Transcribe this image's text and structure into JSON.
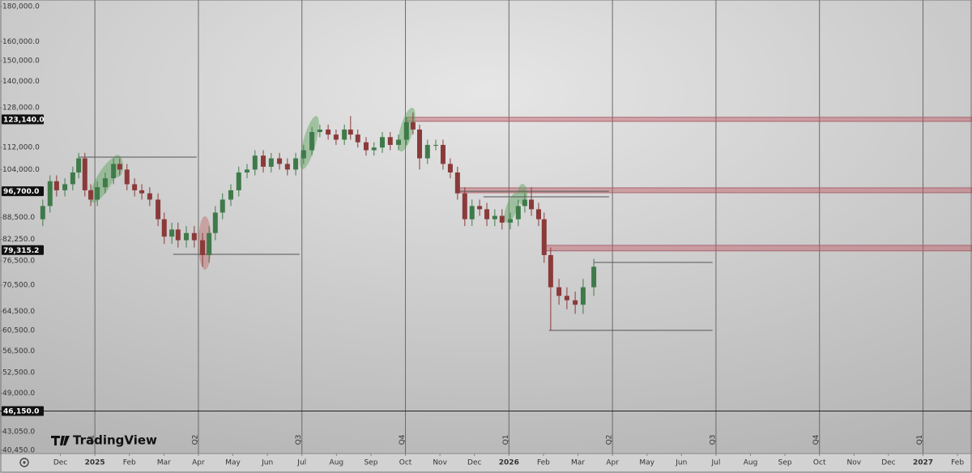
{
  "chart_data": {
    "type": "candlestick",
    "watermark": "TradingView",
    "log_scale": true,
    "up_color": "#3f7a4a",
    "down_color": "#8b3a3a",
    "ylim": [
      40000,
      184000
    ],
    "yticks": [
      {
        "value": 180000,
        "label": "180,000.0"
      },
      {
        "value": 160000,
        "label": "160,000.0"
      },
      {
        "value": 150000,
        "label": "150,000.0"
      },
      {
        "value": 140000,
        "label": "140,000.0"
      },
      {
        "value": 128000,
        "label": "128,000.0"
      },
      {
        "value": 112000,
        "label": "112,000.0"
      },
      {
        "value": 104000,
        "label": "104,000.0"
      },
      {
        "value": 88500,
        "label": "88,500.0"
      },
      {
        "value": 82250,
        "label": "82,250.0"
      },
      {
        "value": 76500,
        "label": "76,500.0"
      },
      {
        "value": 70500,
        "label": "70,500.0"
      },
      {
        "value": 64500,
        "label": "64,500.0"
      },
      {
        "value": 60500,
        "label": "60,500.0"
      },
      {
        "value": 56500,
        "label": "56,500.0"
      },
      {
        "value": 52500,
        "label": "52,500.0"
      },
      {
        "value": 49000,
        "label": "49,000.0"
      },
      {
        "value": 43050,
        "label": "43,050.0"
      },
      {
        "value": 40450,
        "label": "40,450.0"
      }
    ],
    "price_labels": [
      {
        "value": 123140,
        "label": "123,140.0"
      },
      {
        "value": 96700,
        "label": "96,700.0"
      },
      {
        "value": 79315.2,
        "label": "79,315.2"
      },
      {
        "value": 46150,
        "label": "46,150.0"
      }
    ],
    "xlim": [
      -0.75,
      27.42
    ],
    "xticks": [
      {
        "value": 1,
        "label": "Dec"
      },
      {
        "value": 2,
        "label": "2025"
      },
      {
        "value": 3,
        "label": "Feb"
      },
      {
        "value": 4,
        "label": "Mar"
      },
      {
        "value": 5,
        "label": "Apr"
      },
      {
        "value": 6,
        "label": "May"
      },
      {
        "value": 7,
        "label": "Jun"
      },
      {
        "value": 8,
        "label": "Jul"
      },
      {
        "value": 9,
        "label": "Aug"
      },
      {
        "value": 10,
        "label": "Sep"
      },
      {
        "value": 11,
        "label": "Oct"
      },
      {
        "value": 12,
        "label": "Nov"
      },
      {
        "value": 13,
        "label": "Dec"
      },
      {
        "value": 14,
        "label": "2026"
      },
      {
        "value": 15,
        "label": "Feb"
      },
      {
        "value": 16,
        "label": "Mar"
      },
      {
        "value": 17,
        "label": "Apr"
      },
      {
        "value": 18,
        "label": "May"
      },
      {
        "value": 19,
        "label": "Jun"
      },
      {
        "value": 20,
        "label": "Jul"
      },
      {
        "value": 21,
        "label": "Aug"
      },
      {
        "value": 22,
        "label": "Sep"
      },
      {
        "value": 23,
        "label": "Oct"
      },
      {
        "value": 24,
        "label": "Nov"
      },
      {
        "value": 25,
        "label": "Dec"
      },
      {
        "value": 26,
        "label": "2027"
      },
      {
        "value": 27,
        "label": "Feb"
      }
    ],
    "quarter_ticks": [
      {
        "value": 2,
        "label": "Q1"
      },
      {
        "value": 5,
        "label": "Q2"
      },
      {
        "value": 8,
        "label": "Q3"
      },
      {
        "value": 11,
        "label": "Q4"
      },
      {
        "value": 14,
        "label": "Q1"
      },
      {
        "value": 17,
        "label": "Q2"
      },
      {
        "value": 20,
        "label": "Q3"
      },
      {
        "value": 23,
        "label": "Q4"
      },
      {
        "value": 26,
        "label": "Q1"
      }
    ],
    "zones": [
      {
        "low": 122300,
        "high": 124000,
        "x0": 11.03
      },
      {
        "low": 96200,
        "high": 97800,
        "x0": 12.46
      },
      {
        "low": 79100,
        "high": 80600,
        "x0": 15.02
      }
    ],
    "levels": [
      {
        "value": 108450,
        "x0": 1.53,
        "x1": 4.95
      },
      {
        "value": 78200,
        "x0": 4.27,
        "x1": 7.93
      },
      {
        "value": 94900,
        "x0": 13.26,
        "x1": 16.9
      },
      {
        "value": 96700,
        "x0": 12.46,
        "x1": 16.9
      },
      {
        "value": 76100,
        "x0": 16.46,
        "x1": 19.9
      },
      {
        "value": 60550,
        "x0": 15.16,
        "x1": 19.9
      },
      {
        "value": 46150
      }
    ],
    "candles": {
      "x": [
        0.49,
        0.7,
        0.89,
        1.13,
        1.36,
        1.53,
        1.71,
        1.88,
        2.07,
        2.3,
        2.54,
        2.72,
        2.93,
        3.15,
        3.36,
        3.59,
        3.83,
        4.01,
        4.23,
        4.41,
        4.65,
        4.88,
        5.12,
        5.31,
        5.49,
        5.7,
        5.94,
        6.17,
        6.41,
        6.64,
        6.88,
        7.11,
        7.35,
        7.58,
        7.82,
        8.05,
        8.29,
        8.52,
        8.76,
        8.99,
        9.23,
        9.41,
        9.62,
        9.86,
        10.09,
        10.33,
        10.56,
        10.8,
        11.03,
        11.22,
        11.41,
        11.64,
        11.88,
        12.09,
        12.3,
        12.51,
        12.72,
        12.93,
        13.15,
        13.36,
        13.59,
        13.8,
        14.04,
        14.27,
        14.46,
        14.65,
        14.86,
        15.02,
        15.21,
        15.45,
        15.68,
        15.92,
        16.15,
        16.46
      ],
      "open": [
        88000,
        92000,
        100000,
        97000,
        99000,
        103000,
        108000,
        97000,
        94000,
        98000,
        101000,
        106000,
        104000,
        99000,
        97000,
        96000,
        94000,
        88000,
        83000,
        85000,
        82000,
        84000,
        82000,
        78000,
        84000,
        90000,
        94000,
        97000,
        103000,
        104000,
        109000,
        105000,
        108000,
        106000,
        104000,
        108000,
        111000,
        118000,
        119000,
        117000,
        115000,
        119000,
        117000,
        114000,
        111000,
        112000,
        116000,
        113000,
        115000,
        122000,
        119000,
        108000,
        113000,
        113000,
        106000,
        103000,
        96000,
        88000,
        92000,
        91000,
        88000,
        89000,
        87000,
        88000,
        92000,
        94000,
        91000,
        88000,
        78000,
        70000,
        68000,
        67000,
        66000,
        70000
      ],
      "high": [
        94000,
        102000,
        102000,
        101000,
        105000,
        110000,
        110000,
        99000,
        100000,
        103000,
        108000,
        108000,
        106000,
        101000,
        99000,
        98000,
        96000,
        90000,
        87000,
        87000,
        86000,
        86000,
        84000,
        86000,
        92000,
        96000,
        99000,
        105000,
        106000,
        111000,
        111000,
        110000,
        110000,
        108000,
        110000,
        113000,
        120000,
        121000,
        121000,
        119000,
        121000,
        124500,
        119000,
        116000,
        114000,
        118000,
        118000,
        117000,
        124000,
        126000,
        121000,
        115000,
        115000,
        115000,
        108000,
        105000,
        98000,
        94000,
        94000,
        93000,
        91000,
        91000,
        90000,
        94000,
        96000,
        98000,
        93000,
        90000,
        80000,
        72000,
        70000,
        69000,
        72000,
        77000
      ],
      "low": [
        86000,
        90000,
        95000,
        95000,
        97000,
        101000,
        95000,
        92000,
        92000,
        96000,
        99000,
        102000,
        97000,
        95000,
        94000,
        92000,
        86000,
        81000,
        81000,
        80000,
        80000,
        80000,
        75000,
        76000,
        82000,
        88000,
        92000,
        95000,
        101000,
        102000,
        103000,
        103000,
        104000,
        102000,
        102000,
        106000,
        109000,
        116000,
        115000,
        113000,
        113000,
        115000,
        112000,
        109000,
        109000,
        110000,
        111000,
        111000,
        113000,
        117000,
        104000,
        106000,
        111000,
        104000,
        101000,
        94000,
        86000,
        86000,
        89000,
        86000,
        86000,
        85000,
        85000,
        86000,
        90000,
        89000,
        86000,
        76000,
        60500,
        66000,
        65000,
        64000,
        64000,
        68000
      ],
      "close": [
        92000,
        100000,
        97000,
        99000,
        103000,
        108000,
        97000,
        94000,
        98000,
        101000,
        106000,
        104000,
        99000,
        97000,
        96000,
        94000,
        88000,
        83000,
        85000,
        82000,
        84000,
        82000,
        78000,
        84000,
        90000,
        94000,
        97000,
        103000,
        104000,
        109000,
        105000,
        108000,
        106000,
        104000,
        108000,
        111000,
        118000,
        119000,
        117000,
        115000,
        119000,
        117000,
        114000,
        111000,
        112000,
        116000,
        113000,
        115000,
        122000,
        119000,
        108000,
        113000,
        113000,
        106000,
        103000,
        96000,
        88000,
        92000,
        91000,
        88000,
        89000,
        87000,
        88000,
        92000,
        94000,
        91000,
        88000,
        78000,
        70000,
        68000,
        67000,
        66000,
        70000,
        75000
      ]
    }
  }
}
